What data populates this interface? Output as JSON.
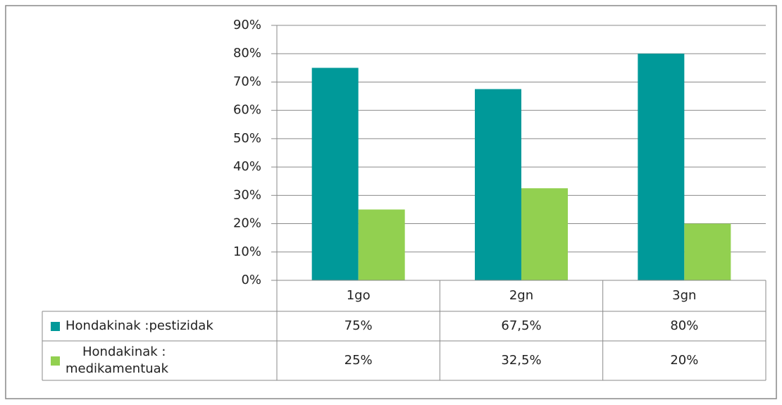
{
  "chart_data": {
    "type": "bar",
    "categories": [
      "1go",
      "2gn",
      "3gn"
    ],
    "series": [
      {
        "name": "Hondakinak :pestizidak",
        "color": "#009999",
        "values": [
          75,
          67.5,
          80
        ],
        "value_labels": [
          "75%",
          "67,5%",
          "80%"
        ]
      },
      {
        "name": "Hondakinak : medikamentuak",
        "color": "#92d050",
        "values": [
          25,
          32.5,
          20
        ],
        "value_labels": [
          "25%",
          "32,5%",
          "20%"
        ]
      }
    ],
    "ylim": [
      0,
      90
    ],
    "yticks": [
      {
        "value": 0,
        "label": "0%"
      },
      {
        "value": 10,
        "label": "10%"
      },
      {
        "value": 20,
        "label": "20%"
      },
      {
        "value": 30,
        "label": "30%"
      },
      {
        "value": 40,
        "label": "40%"
      },
      {
        "value": 50,
        "label": "50%"
      },
      {
        "value": 60,
        "label": "60%"
      },
      {
        "value": 70,
        "label": "70%"
      },
      {
        "value": 80,
        "label": "80%"
      },
      {
        "value": 90,
        "label": "90%"
      }
    ],
    "grid": true
  }
}
